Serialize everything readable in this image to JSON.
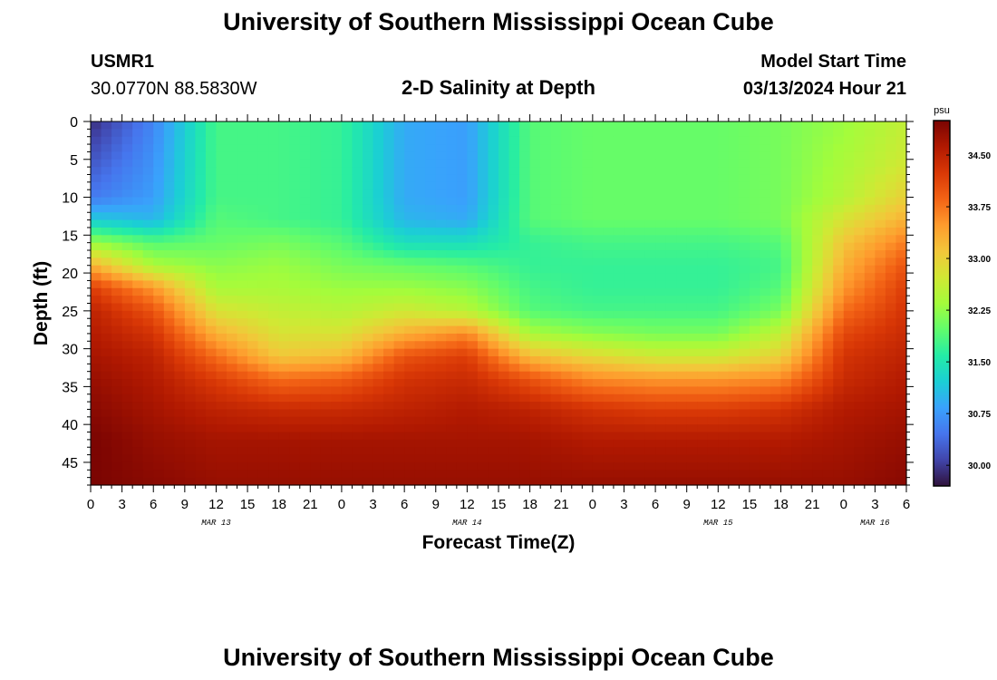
{
  "page": {
    "title": "University of Southern Mississippi Ocean Cube",
    "title_bottom": "University of Southern Mississippi Ocean Cube",
    "station": {
      "name": "USMR1",
      "coords": "30.0770N  88.5830W"
    },
    "plot_title": "2-D Salinity at Depth",
    "model_start": {
      "label": "Model Start Time",
      "value": "03/13/2024 Hour 21"
    }
  },
  "chart_data": {
    "type": "heatmap",
    "title": "2-D Salinity at Depth",
    "xlabel": "Forecast Time(Z)",
    "ylabel": "Depth (ft)",
    "x_tick_labels": [
      "0",
      "3",
      "6",
      "9",
      "12",
      "15",
      "18",
      "21",
      "0",
      "3",
      "6",
      "9",
      "12",
      "15",
      "18",
      "21",
      "0",
      "3",
      "6",
      "9",
      "12",
      "15",
      "18",
      "21",
      "0",
      "3",
      "6"
    ],
    "x_range_hours": [
      0,
      78
    ],
    "date_labels": [
      {
        "label": "MAR 13",
        "hour": 12
      },
      {
        "label": "MAR 14",
        "hour": 36
      },
      {
        "label": "MAR 15",
        "hour": 60
      },
      {
        "label": "MAR 16",
        "hour": 75
      }
    ],
    "y_ticks": [
      0,
      5,
      10,
      15,
      20,
      25,
      30,
      35,
      40,
      45
    ],
    "ylim": [
      0,
      48
    ],
    "y_inverted": true,
    "colorbar": {
      "unit": "psu",
      "ticks": [
        "34.50",
        "33.75",
        "33.00",
        "32.25",
        "31.50",
        "30.75",
        "30.00"
      ],
      "range": [
        29.7,
        35.0
      ],
      "colors": [
        "#30123b",
        "#4145ab",
        "#4675ed",
        "#39a2fc",
        "#1bcfd4",
        "#24eca6",
        "#61fc6c",
        "#a4fc3b",
        "#d1e834",
        "#f3c63a",
        "#fe9b2d",
        "#f36315",
        "#d93806",
        "#b11901",
        "#7a0402"
      ]
    },
    "salinity_grid": {
      "hours": [
        0,
        6,
        12,
        18,
        24,
        30,
        36,
        42,
        48,
        54,
        60,
        66,
        72,
        78
      ],
      "depths": [
        0,
        5,
        10,
        13,
        16,
        19,
        22,
        25,
        28,
        31,
        34,
        38,
        42,
        48
      ],
      "values": [
        [
          29.9,
          30.6,
          31.8,
          31.8,
          31.7,
          30.9,
          30.8,
          31.9,
          32.0,
          32.0,
          32.0,
          32.1,
          32.3,
          32.6
        ],
        [
          30.2,
          30.7,
          31.8,
          31.8,
          31.7,
          30.9,
          30.8,
          31.9,
          32.0,
          32.0,
          32.0,
          32.1,
          32.4,
          32.7
        ],
        [
          30.5,
          30.8,
          31.8,
          31.8,
          31.7,
          30.9,
          30.8,
          31.9,
          32.0,
          32.0,
          32.0,
          32.1,
          32.5,
          33.0
        ],
        [
          31.2,
          31.0,
          31.9,
          31.8,
          31.7,
          31.0,
          30.9,
          31.9,
          32.0,
          32.0,
          32.0,
          32.1,
          32.8,
          33.3
        ],
        [
          32.3,
          31.9,
          32.0,
          32.1,
          31.9,
          31.4,
          31.4,
          31.7,
          31.8,
          31.8,
          31.8,
          31.9,
          33.1,
          33.7
        ],
        [
          33.3,
          32.4,
          32.2,
          32.3,
          32.1,
          32.0,
          31.9,
          31.7,
          31.7,
          31.7,
          31.7,
          31.8,
          33.3,
          34.0
        ],
        [
          34.2,
          33.5,
          32.4,
          32.4,
          32.3,
          32.3,
          32.2,
          31.8,
          31.7,
          31.7,
          31.7,
          31.9,
          33.5,
          34.2
        ],
        [
          34.5,
          34.0,
          32.8,
          32.6,
          32.5,
          32.7,
          32.5,
          31.9,
          31.8,
          31.8,
          31.8,
          32.1,
          33.8,
          34.3
        ],
        [
          34.6,
          34.3,
          33.3,
          32.8,
          32.8,
          33.3,
          33.6,
          32.4,
          32.2,
          32.1,
          32.1,
          32.6,
          34.1,
          34.4
        ],
        [
          34.7,
          34.5,
          33.8,
          33.1,
          33.2,
          34.0,
          34.2,
          33.2,
          32.9,
          32.7,
          32.7,
          33.0,
          34.3,
          34.5
        ],
        [
          34.8,
          34.6,
          34.2,
          33.8,
          33.9,
          34.3,
          34.4,
          34.0,
          33.6,
          33.5,
          33.5,
          33.6,
          34.4,
          34.6
        ],
        [
          34.9,
          34.7,
          34.5,
          34.4,
          34.4,
          34.5,
          34.6,
          34.5,
          34.3,
          34.2,
          34.2,
          34.3,
          34.6,
          34.7
        ],
        [
          35.0,
          34.8,
          34.7,
          34.7,
          34.7,
          34.7,
          34.7,
          34.7,
          34.6,
          34.6,
          34.6,
          34.6,
          34.7,
          34.8
        ],
        [
          35.0,
          34.9,
          34.8,
          34.8,
          34.8,
          34.8,
          34.8,
          34.8,
          34.8,
          34.8,
          34.8,
          34.8,
          34.8,
          34.9
        ]
      ]
    }
  }
}
